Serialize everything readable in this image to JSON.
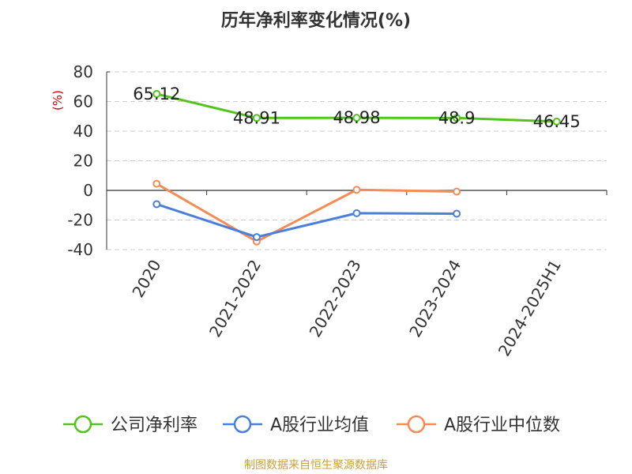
{
  "chart_data": {
    "type": "line",
    "title": "历年净利率变化情况(%)",
    "ylabel": "(%)",
    "categories": [
      "2020",
      "2021-2022",
      "2022-2023",
      "2023-2024",
      "2024-2025H1"
    ],
    "y_ticks": [
      "80",
      "60",
      "40",
      "20",
      "0",
      "-20",
      "-40"
    ],
    "ylim": [
      -40,
      80
    ],
    "grid": true,
    "legend_position": "bottom",
    "series": [
      {
        "name": "公司净利率",
        "color": "#52c41a",
        "values": [
          65.12,
          48.91,
          48.98,
          48.9,
          46.45
        ],
        "labels": [
          "65.12",
          "48.91",
          "48.98",
          "48.9",
          "46.45"
        ]
      },
      {
        "name": "A股行业均值",
        "color": "#4a7fdb",
        "values": [
          -9.3,
          -31.5,
          -15.4,
          -15.7,
          null
        ]
      },
      {
        "name": "A股行业中位数",
        "color": "#f58b55",
        "values": [
          4.5,
          -34.5,
          0.4,
          -0.8,
          null
        ]
      }
    ]
  },
  "source": "制图数据来自恒生聚源数据库"
}
